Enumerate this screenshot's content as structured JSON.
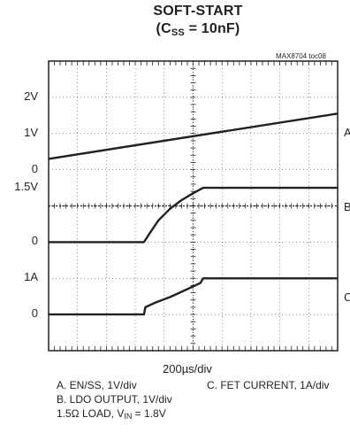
{
  "figure": {
    "title_line1": "SOFT-START",
    "title_line2_pre": "(C",
    "title_line2_sub": "SS",
    "title_line2_post": " = 10nF)",
    "figure_id": "MAX8704 toc08"
  },
  "chart_data": {
    "type": "line",
    "title": "SOFT-START (CSS = 10nF)",
    "grid": true,
    "xlabel": "200µs/div",
    "x_divisions": 10,
    "y_divisions": 8,
    "channel_labels": [
      {
        "id": "ch1-2v",
        "text": "2V",
        "div": 7
      },
      {
        "id": "ch1-1v",
        "text": "1V",
        "div": 6
      },
      {
        "id": "ch1-0",
        "text": "0",
        "div": 5
      },
      {
        "id": "ch2-1p5v",
        "text": "1.5V",
        "div": 4.5
      },
      {
        "id": "ch2-0",
        "text": "0",
        "div": 3
      },
      {
        "id": "ch3-1a",
        "text": "1A",
        "div": 2
      },
      {
        "id": "ch3-0",
        "text": "0",
        "div": 1
      }
    ],
    "series": [
      {
        "key": "A",
        "points": [
          [
            0,
            5.3
          ],
          [
            10,
            6.55
          ]
        ]
      },
      {
        "key": "B",
        "points": [
          [
            0,
            3.0
          ],
          [
            3.3,
            3.0
          ],
          [
            3.5,
            3.25
          ],
          [
            3.8,
            3.6
          ],
          [
            4.2,
            3.92
          ],
          [
            4.6,
            4.16
          ],
          [
            5.0,
            4.35
          ],
          [
            5.35,
            4.5
          ],
          [
            10,
            4.5
          ]
        ]
      },
      {
        "key": "C",
        "points": [
          [
            0,
            1.0
          ],
          [
            3.3,
            1.0
          ],
          [
            3.35,
            1.2
          ],
          [
            3.7,
            1.33
          ],
          [
            4.2,
            1.48
          ],
          [
            4.8,
            1.7
          ],
          [
            5.25,
            1.87
          ],
          [
            5.35,
            2.0
          ],
          [
            10,
            2.0
          ]
        ]
      }
    ]
  },
  "legend": {
    "a": "A. EN/SS, 1V/div",
    "b": "B. LDO OUTPUT, 1V/div",
    "c": "C. FET CURRENT, 1A/div",
    "load_pre": "1.5Ω LOAD, V",
    "load_sub": "IN",
    "load_post": " = 1.8V"
  }
}
